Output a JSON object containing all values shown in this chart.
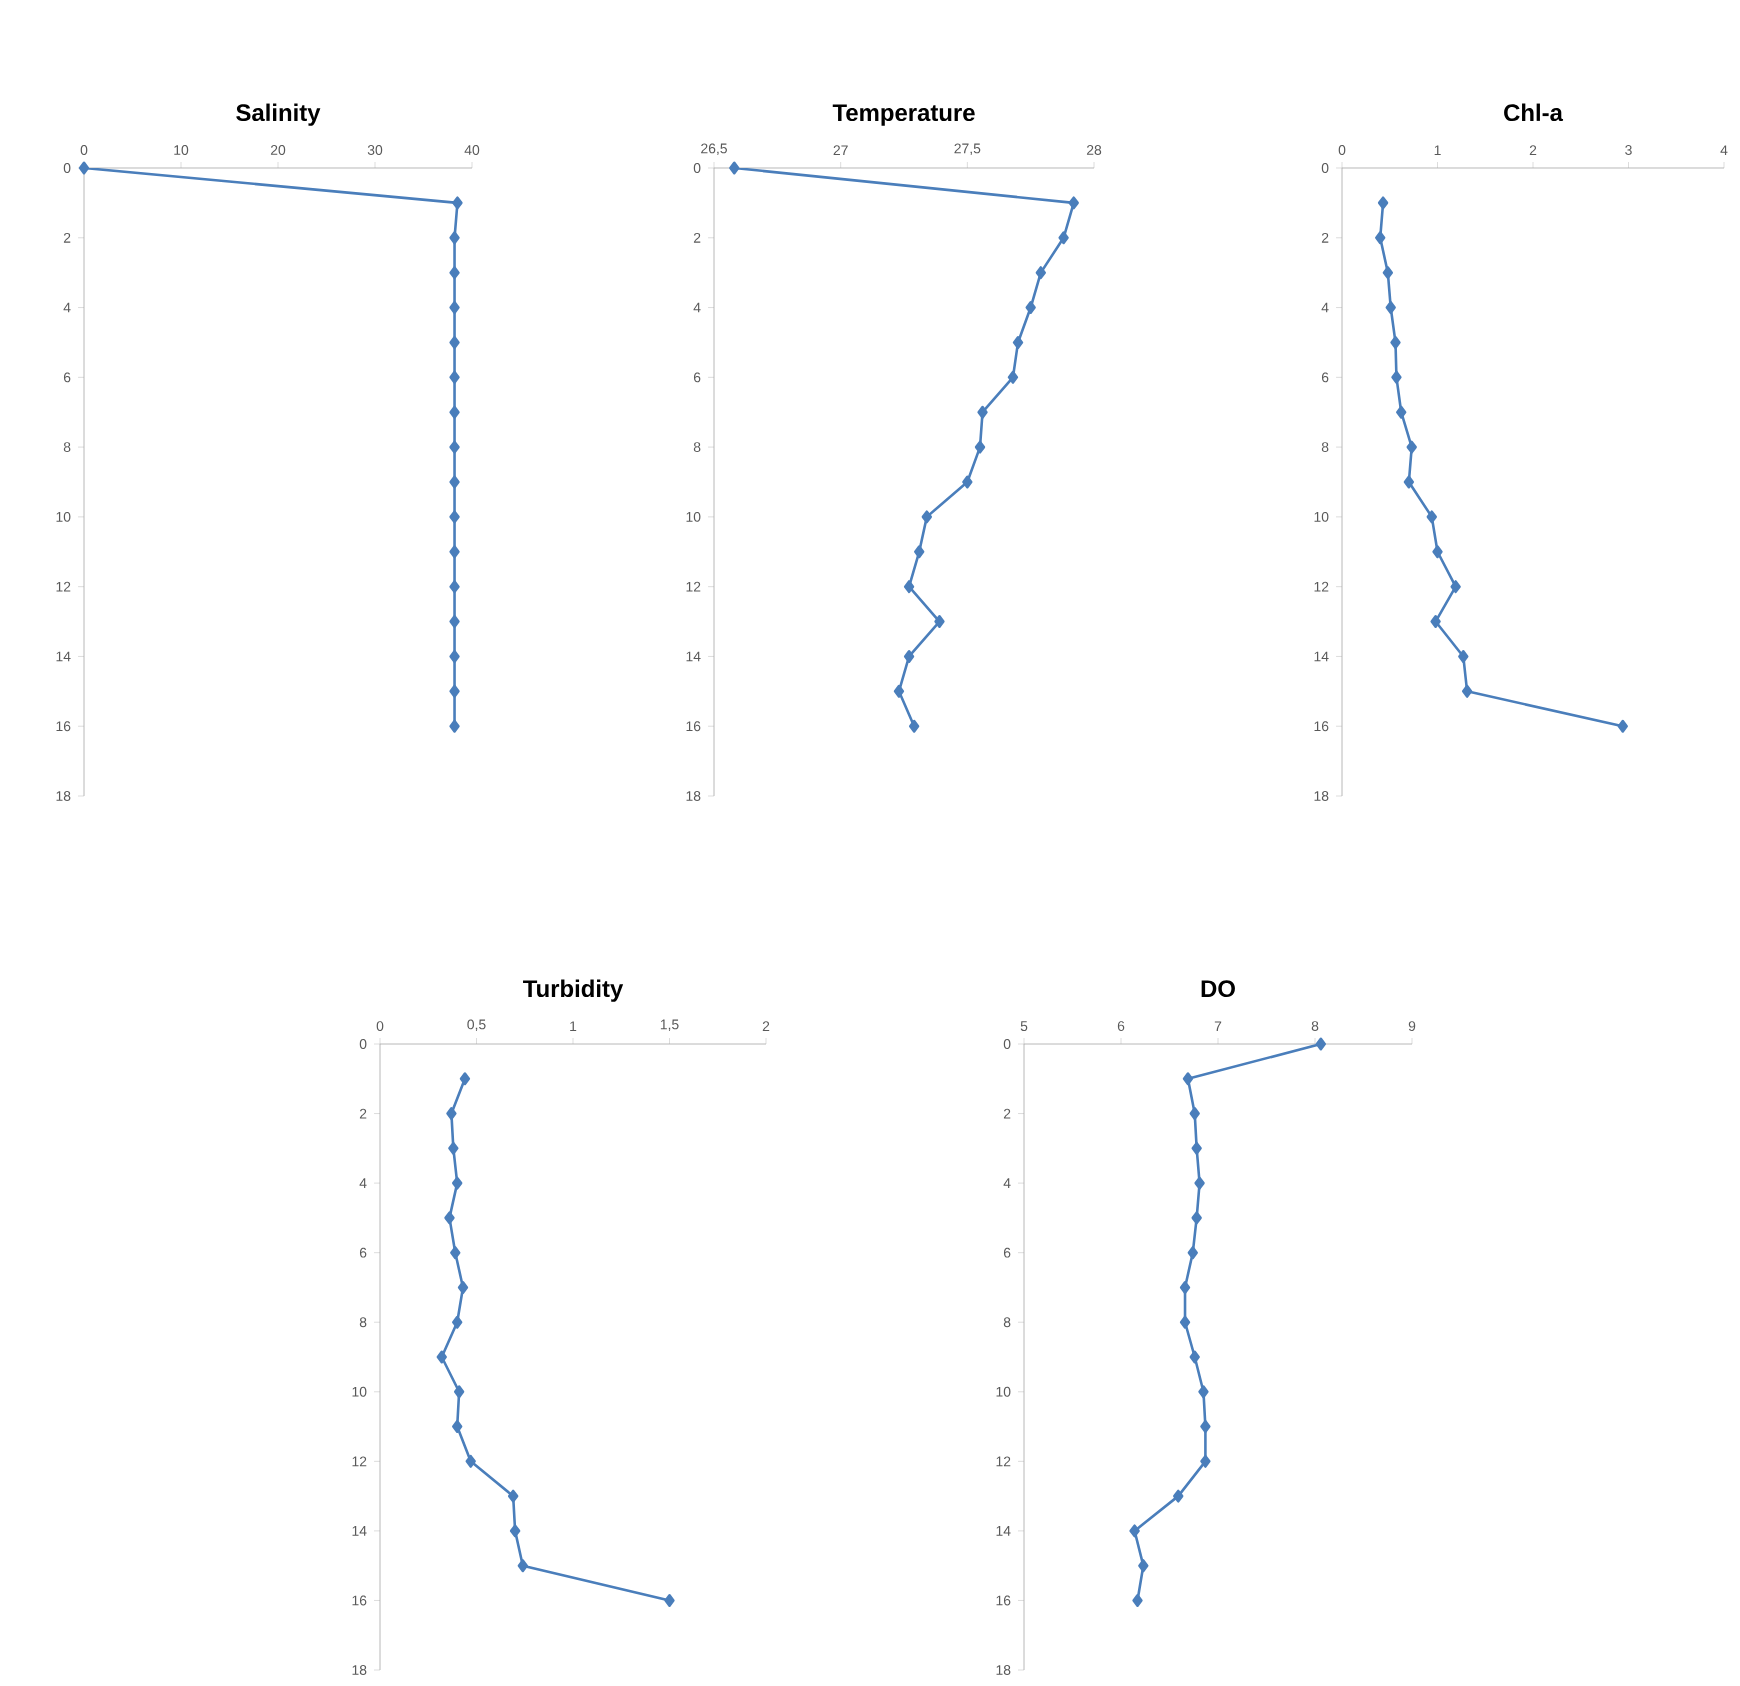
{
  "chart_data": [
    {
      "type": "line",
      "title": "Salinity",
      "marker": "diamond",
      "xlim": [
        0,
        40
      ],
      "xticks": [
        0,
        10,
        20,
        30,
        40
      ],
      "ylim": [
        18,
        0
      ],
      "yticks": [
        0,
        2,
        4,
        6,
        8,
        10,
        12,
        14,
        16,
        18
      ],
      "series": [
        {
          "color": "#4a7ebb",
          "x": [
            0,
            38.5,
            38.2,
            38.2,
            38.2,
            38.2,
            38.2,
            38.2,
            38.2,
            38.2,
            38.2,
            38.2,
            38.2,
            38.2,
            38.2,
            38.2,
            38.2
          ],
          "values": [
            0,
            1,
            2,
            3,
            4,
            5,
            6,
            7,
            8,
            9,
            10,
            11,
            12,
            13,
            14,
            15,
            16
          ]
        }
      ]
    },
    {
      "type": "line",
      "title": "Temperature",
      "marker": "diamond",
      "xlim": [
        26.5,
        28
      ],
      "xticks": [
        {
          "value": 26.5,
          "label": "26,5"
        },
        27,
        {
          "value": 27.5,
          "label": "27,5"
        },
        28
      ],
      "ylim": [
        18,
        0
      ],
      "yticks": [
        0,
        2,
        4,
        6,
        8,
        10,
        12,
        14,
        16,
        18
      ],
      "series": [
        {
          "color": "#4a7ebb",
          "x": [
            26.58,
            27.92,
            27.88,
            27.79,
            27.75,
            27.7,
            27.68,
            27.56,
            27.55,
            27.5,
            27.34,
            27.31,
            27.27,
            27.39,
            27.27,
            27.23,
            27.29
          ],
          "values": [
            0,
            1,
            2,
            3,
            4,
            5,
            6,
            7,
            8,
            9,
            10,
            11,
            12,
            13,
            14,
            15,
            16
          ]
        }
      ]
    },
    {
      "type": "line",
      "title": "Chl-a",
      "marker": "diamond",
      "xlim": [
        0,
        4
      ],
      "xticks": [
        0,
        1,
        2,
        3,
        4
      ],
      "ylim": [
        18,
        0
      ],
      "yticks": [
        0,
        2,
        4,
        6,
        8,
        10,
        12,
        14,
        16,
        18
      ],
      "series": [
        {
          "color": "#4a7ebb",
          "x": [
            0.43,
            0.4,
            0.48,
            0.51,
            0.56,
            0.57,
            0.62,
            0.73,
            0.7,
            0.94,
            1.0,
            1.19,
            0.98,
            1.27,
            1.31,
            2.94
          ],
          "values": [
            1,
            2,
            3,
            4,
            5,
            6,
            7,
            8,
            9,
            10,
            11,
            12,
            13,
            14,
            15,
            16
          ]
        }
      ]
    },
    {
      "type": "line",
      "title": "Turbidity",
      "marker": "diamond",
      "xlim": [
        0,
        2
      ],
      "xticks": [
        0,
        {
          "value": 0.5,
          "label": "0,5"
        },
        1,
        {
          "value": 1.5,
          "label": "1,5"
        },
        2
      ],
      "ylim": [
        18,
        0
      ],
      "yticks": [
        0,
        2,
        4,
        6,
        8,
        10,
        12,
        14,
        16,
        18
      ],
      "series": [
        {
          "color": "#4a7ebb",
          "x": [
            0.44,
            0.37,
            0.38,
            0.4,
            0.36,
            0.39,
            0.43,
            0.4,
            0.32,
            0.41,
            0.4,
            0.47,
            0.69,
            0.7,
            0.74,
            1.5
          ],
          "values": [
            1,
            2,
            3,
            4,
            5,
            6,
            7,
            8,
            9,
            10,
            11,
            12,
            13,
            14,
            15,
            16
          ]
        }
      ]
    },
    {
      "type": "line",
      "title": "DO",
      "marker": "diamond",
      "xlim": [
        5,
        9
      ],
      "xticks": [
        5,
        6,
        7,
        8,
        9
      ],
      "ylim": [
        18,
        0
      ],
      "yticks": [
        0,
        2,
        4,
        6,
        8,
        10,
        12,
        14,
        16,
        18
      ],
      "series": [
        {
          "color": "#4a7ebb",
          "x": [
            8.06,
            6.69,
            6.76,
            6.78,
            6.81,
            6.78,
            6.74,
            6.66,
            6.66,
            6.76,
            6.85,
            6.87,
            6.87,
            6.59,
            6.14,
            6.23,
            6.17
          ],
          "values": [
            0,
            1,
            2,
            3,
            4,
            5,
            6,
            7,
            8,
            9,
            10,
            11,
            12,
            13,
            14,
            15,
            16
          ]
        }
      ]
    }
  ]
}
